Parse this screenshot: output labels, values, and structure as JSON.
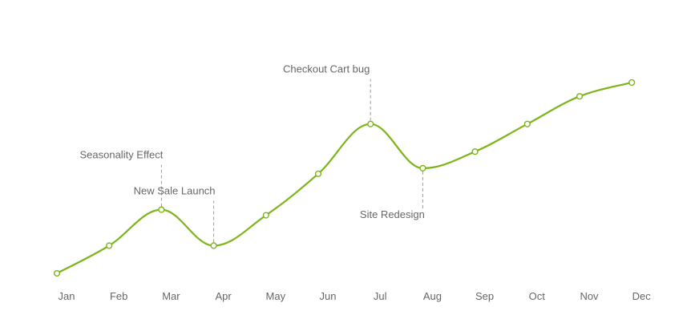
{
  "chart_data": {
    "type": "line",
    "title": "",
    "xlabel": "",
    "ylabel": "",
    "categories": [
      "Jan",
      "Feb",
      "Mar",
      "Apr",
      "May",
      "Jun",
      "Jul",
      "Aug",
      "Sep",
      "Oct",
      "Nov",
      "Dec"
    ],
    "series": [
      {
        "values": [
          0,
          10,
          23,
          10,
          21,
          36,
          54,
          38,
          44,
          54,
          64,
          69
        ]
      }
    ],
    "ylim": [
      0,
      80
    ],
    "grid": false,
    "legend": "none",
    "line_color": "#7cb518",
    "annotations": [
      {
        "category": "Mar",
        "text": "Seasonality Effect",
        "position": "above"
      },
      {
        "category": "Apr",
        "text": "New Sale Launch",
        "position": "above"
      },
      {
        "category": "Jul",
        "text": "Checkout Cart bug",
        "position": "above"
      },
      {
        "category": "Aug",
        "text": "Site Redesign",
        "position": "below"
      }
    ]
  }
}
